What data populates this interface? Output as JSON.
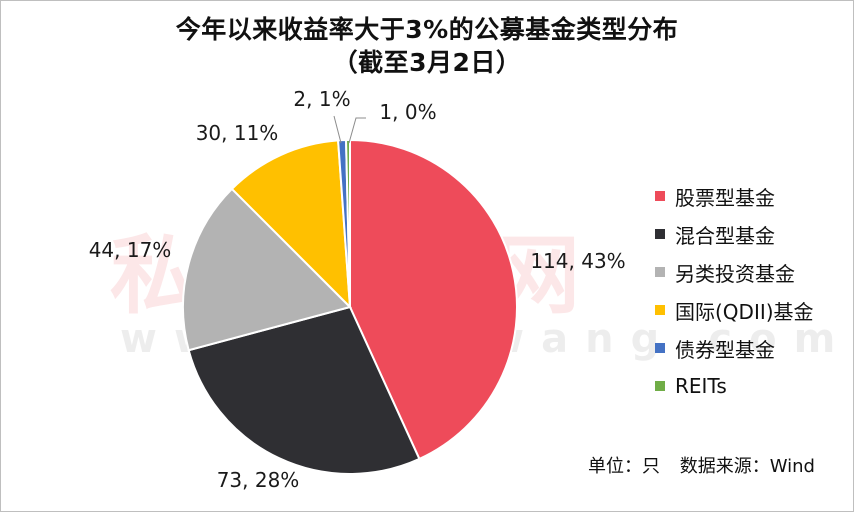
{
  "chart_data": {
    "type": "pie",
    "title": "今年以来收益率大于3%的公募基金类型分布",
    "subtitle": "（截至3月2日）",
    "categories": [
      "股票型基金",
      "混合型基金",
      "另类投资基金",
      "国际(QDII)基金",
      "债券型基金",
      "REITs"
    ],
    "values": [
      114,
      73,
      44,
      30,
      2,
      1
    ],
    "data_labels": [
      "114, 43%",
      "73, 28%",
      "44, 17%",
      "30, 11%",
      "2, 1%",
      "1, 0%"
    ],
    "colors": [
      "#EE4B5A",
      "#2F2F33",
      "#B3B3B3",
      "#FFC000",
      "#4472C4",
      "#70AD47"
    ],
    "legend_placement": "right",
    "start_angle_deg": 0,
    "direction": "clockwise"
  },
  "footer": {
    "unit": "单位：只",
    "source": "数据来源：Wind"
  },
  "watermark": {
    "text": "私募排排网",
    "url": "www.simuwang.com"
  }
}
